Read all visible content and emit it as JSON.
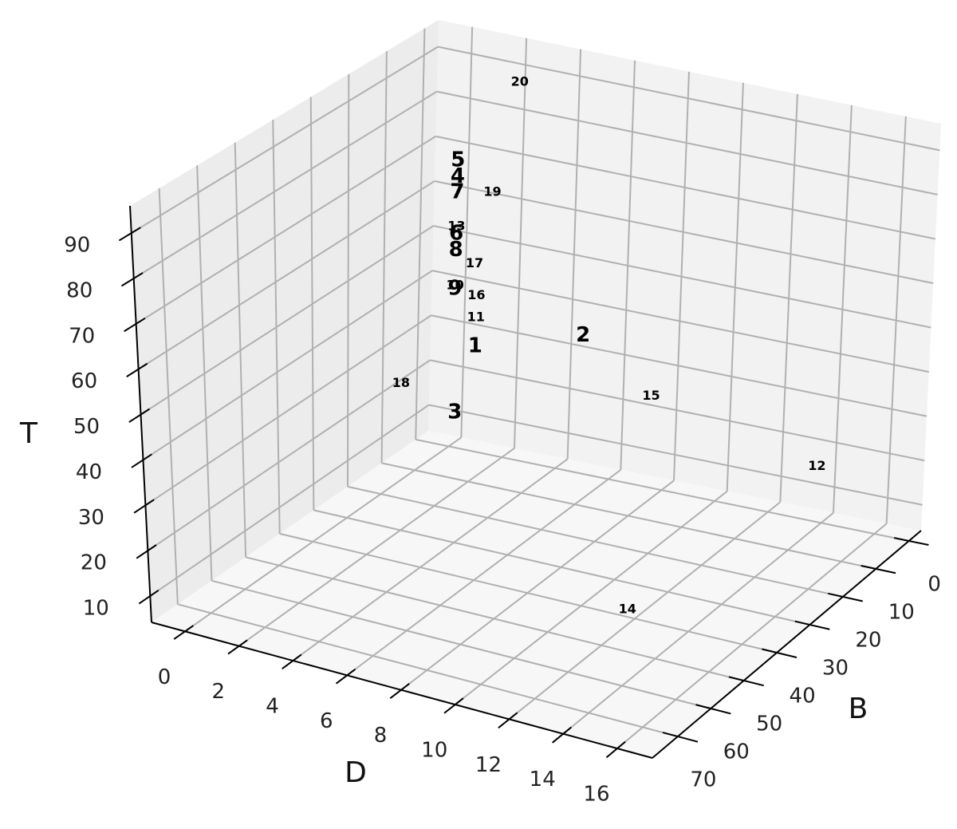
{
  "chart_data": {
    "type": "scatter3d",
    "x_label": "D",
    "y_label": "B",
    "z_label": "T",
    "labels": [
      "1",
      "2",
      "3",
      "4",
      "5",
      "6",
      "7",
      "8",
      "9",
      "10",
      "11",
      "12",
      "13",
      "14",
      "15",
      "16",
      "17",
      "18",
      "19",
      "20"
    ],
    "x": [
      0.9,
      4.9,
      0.2,
      0.1,
      0.1,
      0.1,
      0.1,
      0.1,
      0.1,
      0.1,
      0.9,
      14,
      0.1,
      12.4,
      7.5,
      0.9,
      0.8,
      0,
      1.4,
      2.3
    ],
    "y": [
      0,
      0,
      0,
      0,
      0,
      0,
      0,
      0,
      0,
      0,
      0,
      2,
      0,
      45.4,
      0,
      0,
      0,
      14.3,
      0,
      0
    ],
    "z": [
      27.7,
      35,
      12,
      64.6,
      68.2,
      51.8,
      61.1,
      48.2,
      39.5,
      40.2,
      34.1,
      18.1,
      53.4,
      10,
      24.7,
      39,
      46,
      25.8,
      62.7,
      88.5
    ],
    "xlim": [
      -1.24,
      17.3
    ],
    "ylim": [
      -3.7,
      77.7
    ],
    "zlim": [
      4.2,
      96
    ],
    "xticks": [
      0,
      2,
      4,
      6,
      8,
      10,
      12,
      14,
      16
    ],
    "yticks": [
      0,
      10,
      20,
      30,
      40,
      50,
      60,
      70
    ],
    "zticks": [
      10,
      20,
      30,
      40,
      50,
      60,
      70,
      80,
      90
    ],
    "grid": true,
    "color": "#000000"
  }
}
